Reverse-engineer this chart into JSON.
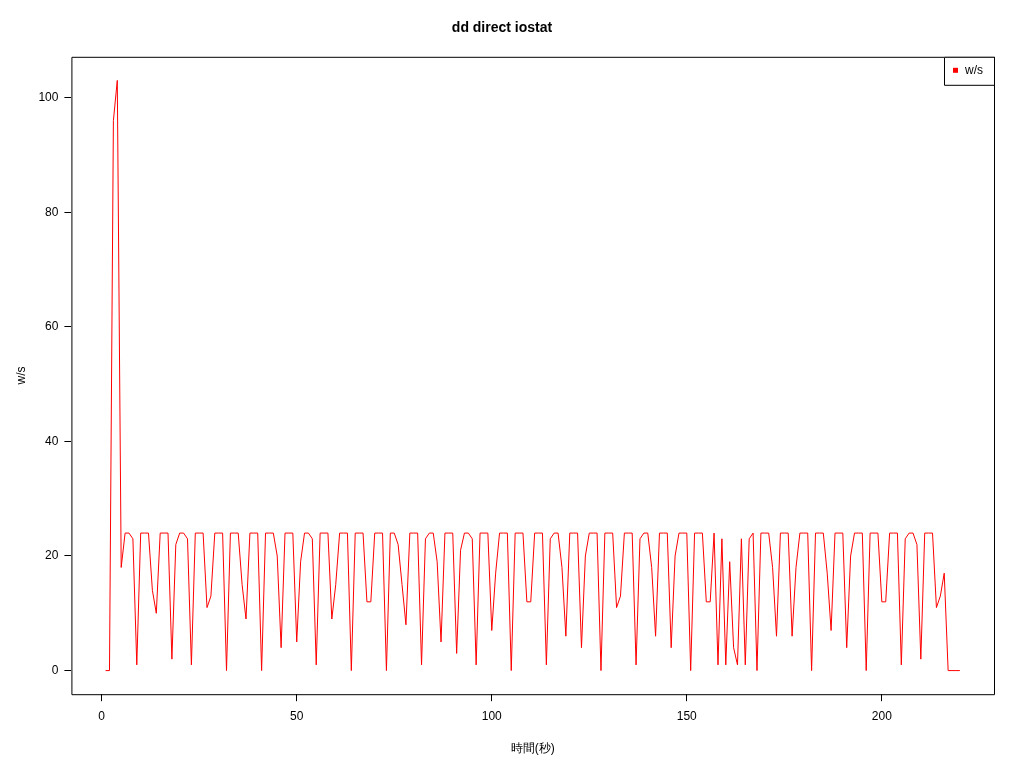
{
  "chart_data": {
    "type": "line",
    "title": "dd direct iostat",
    "xlabel": "時間(秒)",
    "ylabel": "w/s",
    "xlim": [
      -7.76,
      228.76
    ],
    "xticks": [
      0,
      50,
      100,
      150,
      200
    ],
    "ylim": [
      -4.12,
      107.12
    ],
    "yticks": [
      0,
      20,
      40,
      60,
      80,
      100
    ],
    "grid": false,
    "legend": "top right",
    "marker": "none",
    "line_style": "solid",
    "series": [
      {
        "name": "w/s",
        "color": "#ff0000",
        "x": [
          1,
          2,
          3,
          4,
          5,
          6,
          7,
          8,
          9,
          10,
          11,
          12,
          13,
          14,
          15,
          16,
          17,
          18,
          19,
          20,
          21,
          22,
          23,
          24,
          25,
          26,
          27,
          28,
          29,
          30,
          31,
          32,
          33,
          34,
          35,
          36,
          37,
          38,
          39,
          40,
          41,
          42,
          43,
          44,
          45,
          46,
          47,
          48,
          49,
          50,
          51,
          52,
          53,
          54,
          55,
          56,
          57,
          58,
          59,
          60,
          61,
          62,
          63,
          64,
          65,
          66,
          67,
          68,
          69,
          70,
          71,
          72,
          73,
          74,
          75,
          76,
          77,
          78,
          79,
          80,
          81,
          82,
          83,
          84,
          85,
          86,
          87,
          88,
          89,
          90,
          91,
          92,
          93,
          94,
          95,
          96,
          97,
          98,
          99,
          100,
          101,
          102,
          103,
          104,
          105,
          106,
          107,
          108,
          109,
          110,
          111,
          112,
          113,
          114,
          115,
          116,
          117,
          118,
          119,
          120,
          121,
          122,
          123,
          124,
          125,
          126,
          127,
          128,
          129,
          130,
          131,
          132,
          133,
          134,
          135,
          136,
          137,
          138,
          139,
          140,
          141,
          142,
          143,
          144,
          145,
          146,
          147,
          148,
          149,
          150,
          151,
          152,
          153,
          154,
          155,
          156,
          157,
          158,
          159,
          160,
          161,
          162,
          163,
          164,
          165,
          166,
          167,
          168,
          169,
          170,
          171,
          172,
          173,
          174,
          175,
          176,
          177,
          178,
          179,
          180,
          181,
          182,
          183,
          184,
          185,
          186,
          187,
          188,
          189,
          190,
          191,
          192,
          193,
          194,
          195,
          196,
          197,
          198,
          199,
          200,
          201,
          202,
          203,
          204,
          205,
          206,
          207,
          208,
          209,
          210,
          211,
          212,
          213,
          214,
          215,
          216,
          217,
          218,
          219,
          220
        ],
        "values": [
          0,
          0,
          96,
          103,
          18,
          24,
          24,
          23,
          1,
          24,
          24,
          24,
          14,
          10,
          24,
          24,
          24,
          2,
          22,
          24,
          24,
          23,
          1,
          24,
          24,
          24,
          11,
          13,
          24,
          24,
          24,
          0,
          24,
          24,
          24,
          15,
          9,
          24,
          24,
          24,
          0,
          24,
          24,
          24,
          20,
          4,
          24,
          24,
          24,
          5,
          19,
          24,
          24,
          23,
          1,
          24,
          24,
          24,
          9,
          15,
          24,
          24,
          24,
          0,
          24,
          24,
          24,
          12,
          12,
          24,
          24,
          24,
          0,
          24,
          24,
          22,
          15,
          8,
          24,
          24,
          24,
          1,
          23,
          24,
          24,
          19,
          5,
          24,
          24,
          24,
          3,
          21,
          24,
          24,
          23,
          1,
          24,
          24,
          24,
          7,
          17,
          24,
          24,
          24,
          0,
          24,
          24,
          24,
          12,
          12,
          24,
          24,
          24,
          1,
          23,
          24,
          24,
          18,
          6,
          24,
          24,
          24,
          4,
          20,
          24,
          24,
          24,
          0,
          24,
          24,
          24,
          11,
          13,
          24,
          24,
          24,
          1,
          23,
          24,
          24,
          18,
          6,
          24,
          24,
          24,
          4,
          20,
          24,
          24,
          24,
          0,
          24,
          24,
          24,
          12,
          12,
          24,
          1,
          23,
          1,
          19,
          4,
          1,
          23,
          1,
          23,
          24,
          0,
          24,
          24,
          24,
          18,
          6,
          24,
          24,
          24,
          6,
          18,
          24,
          24,
          24,
          0,
          24,
          24,
          24,
          17,
          7,
          24,
          24,
          24,
          4,
          20,
          24,
          24,
          24,
          0,
          24,
          24,
          24,
          12,
          12,
          24,
          24,
          24,
          1,
          23,
          24,
          24,
          22,
          2,
          24,
          24,
          24,
          11,
          13,
          17,
          0,
          0,
          0,
          0
        ]
      }
    ]
  }
}
